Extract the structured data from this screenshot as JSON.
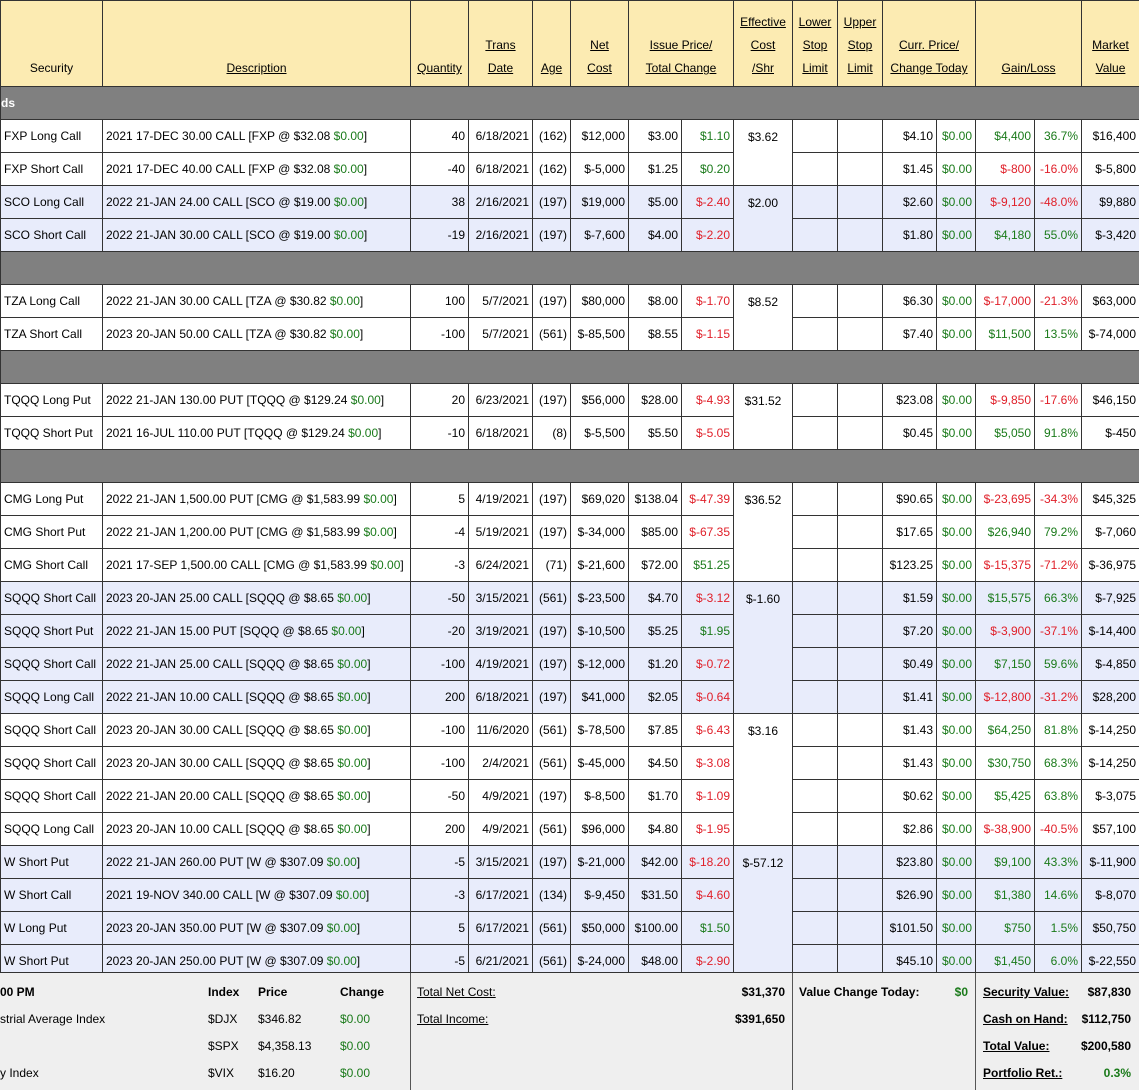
{
  "table": {
    "headers": [
      [
        "Security"
      ],
      [
        "Description"
      ],
      [
        "Quantity"
      ],
      [
        "Trans",
        "Date"
      ],
      [
        "Age"
      ],
      [
        "Net",
        "Cost"
      ],
      [
        "Issue Price/",
        "Total Change"
      ],
      [
        "Effective",
        "Cost",
        "/Shr"
      ],
      [
        "Lower",
        "Stop",
        "Limit"
      ],
      [
        "Upper",
        "Stop",
        "Limit"
      ],
      [
        "Curr. Price/",
        "Change Today"
      ],
      [
        "Gain/Loss"
      ],
      [
        "Market",
        "Value"
      ]
    ],
    "groups": [
      {
        "label": "ds",
        "blocks": [
          {
            "effective_cost": "$3.62",
            "shaded": false,
            "rows": [
              [
                "FXP Long Call",
                "2021 17-DEC 30.00 CALL [FXP @ $32.08 ",
                "$0.00",
                "]",
                "40",
                "6/18/2021",
                "(162)",
                "$12,000",
                "$3.00",
                "$1.10",
                "$4.10",
                "$0.00",
                "$4,400",
                "36.7%",
                "$16,400"
              ],
              [
                "FXP Short Call",
                "2021 17-DEC 40.00 CALL [FXP @ $32.08 ",
                "$0.00",
                "]",
                "-40",
                "6/18/2021",
                "(162)",
                "$-5,000",
                "$1.25",
                "$0.20",
                "$1.45",
                "$0.00",
                "$-800",
                "-16.0%",
                "$-5,800"
              ]
            ]
          },
          {
            "effective_cost": "$2.00",
            "shaded": true,
            "rows": [
              [
                "SCO Long Call",
                "2022 21-JAN 24.00 CALL [SCO @ $19.00 ",
                "$0.00",
                "]",
                "38",
                "2/16/2021",
                "(197)",
                "$19,000",
                "$5.00",
                "$-2.40",
                "$2.60",
                "$0.00",
                "$-9,120",
                "-48.0%",
                "$9,880"
              ],
              [
                "SCO Short Call",
                "2022 21-JAN 30.00 CALL [SCO @ $19.00 ",
                "$0.00",
                "]",
                "-19",
                "2/16/2021",
                "(197)",
                "$-7,600",
                "$4.00",
                "$-2.20",
                "$1.80",
                "$0.00",
                "$4,180",
                "55.0%",
                "$-3,420"
              ]
            ]
          }
        ]
      },
      {
        "blocks": [
          {
            "effective_cost": "$8.52",
            "shaded": false,
            "rows": [
              [
                "TZA Long Call",
                "2022 21-JAN 30.00 CALL [TZA @ $30.82 ",
                "$0.00",
                "]",
                "100",
                "5/7/2021",
                "(197)",
                "$80,000",
                "$8.00",
                "$-1.70",
                "$6.30",
                "$0.00",
                "$-17,000",
                "-21.3%",
                "$63,000"
              ],
              [
                "TZA Short Call",
                "2023 20-JAN 50.00 CALL [TZA @ $30.82 ",
                "$0.00",
                "]",
                "-100",
                "5/7/2021",
                "(561)",
                "$-85,500",
                "$8.55",
                "$-1.15",
                "$7.40",
                "$0.00",
                "$11,500",
                "13.5%",
                "$-74,000"
              ]
            ]
          }
        ]
      },
      {
        "blocks": [
          {
            "effective_cost": "$31.52",
            "shaded": false,
            "rows": [
              [
                "TQQQ Long Put",
                "2022 21-JAN 130.00 PUT [TQQQ @ $129.24 ",
                "$0.00",
                "]",
                "20",
                "6/23/2021",
                "(197)",
                "$56,000",
                "$28.00",
                "$-4.93",
                "$23.08",
                "$0.00",
                "$-9,850",
                "-17.6%",
                "$46,150"
              ],
              [
                "TQQQ Short Put",
                "2021 16-JUL 110.00 PUT [TQQQ @ $129.24 ",
                "$0.00",
                "]",
                "-10",
                "6/18/2021",
                "(8)",
                "$-5,500",
                "$5.50",
                "$-5.05",
                "$0.45",
                "$0.00",
                "$5,050",
                "91.8%",
                "$-450"
              ]
            ]
          }
        ]
      },
      {
        "blocks": [
          {
            "effective_cost": "$36.52",
            "shaded": false,
            "rows": [
              [
                "CMG Long Put",
                "2022 21-JAN 1,500.00 PUT [CMG @ $1,583.99 ",
                "$0.00",
                "]",
                "5",
                "4/19/2021",
                "(197)",
                "$69,020",
                "$138.04",
                "$-47.39",
                "$90.65",
                "$0.00",
                "$-23,695",
                "-34.3%",
                "$45,325"
              ],
              [
                "CMG Short Put",
                "2022 21-JAN 1,200.00 PUT [CMG @ $1,583.99 ",
                "$0.00",
                "]",
                "-4",
                "5/19/2021",
                "(197)",
                "$-34,000",
                "$85.00",
                "$-67.35",
                "$17.65",
                "$0.00",
                "$26,940",
                "79.2%",
                "$-7,060"
              ],
              [
                "CMG Short Call",
                "2021 17-SEP 1,500.00 CALL [CMG @ $1,583.99 ",
                "$0.00",
                "]",
                "-3",
                "6/24/2021",
                "(71)",
                "$-21,600",
                "$72.00",
                "$51.25",
                "$123.25",
                "$0.00",
                "$-15,375",
                "-71.2%",
                "$-36,975"
              ]
            ]
          },
          {
            "effective_cost": "$-1.60",
            "shaded": true,
            "rows": [
              [
                "SQQQ Short Call",
                "2023 20-JAN 25.00 CALL [SQQQ @ $8.65 ",
                "$0.00",
                "]",
                "-50",
                "3/15/2021",
                "(561)",
                "$-23,500",
                "$4.70",
                "$-3.12",
                "$1.59",
                "$0.00",
                "$15,575",
                "66.3%",
                "$-7,925"
              ],
              [
                "SQQQ Short Put",
                "2022 21-JAN 15.00 PUT [SQQQ @ $8.65 ",
                "$0.00",
                "]",
                "-20",
                "3/19/2021",
                "(197)",
                "$-10,500",
                "$5.25",
                "$1.95",
                "$7.20",
                "$0.00",
                "$-3,900",
                "-37.1%",
                "$-14,400"
              ],
              [
                "SQQQ Short Call",
                "2022 21-JAN 25.00 CALL [SQQQ @ $8.65 ",
                "$0.00",
                "]",
                "-100",
                "4/19/2021",
                "(197)",
                "$-12,000",
                "$1.20",
                "$-0.72",
                "$0.49",
                "$0.00",
                "$7,150",
                "59.6%",
                "$-4,850"
              ],
              [
                "SQQQ Long Call",
                "2022 21-JAN 10.00 CALL [SQQQ @ $8.65 ",
                "$0.00",
                "]",
                "200",
                "6/18/2021",
                "(197)",
                "$41,000",
                "$2.05",
                "$-0.64",
                "$1.41",
                "$0.00",
                "$-12,800",
                "-31.2%",
                "$28,200"
              ]
            ]
          },
          {
            "effective_cost": "$3.16",
            "shaded": false,
            "rows": [
              [
                "SQQQ Short Call",
                "2023 20-JAN 30.00 CALL [SQQQ @ $8.65 ",
                "$0.00",
                "]",
                "-100",
                "11/6/2020",
                "(561)",
                "$-78,500",
                "$7.85",
                "$-6.43",
                "$1.43",
                "$0.00",
                "$64,250",
                "81.8%",
                "$-14,250"
              ],
              [
                "SQQQ Short Call",
                "2023 20-JAN 30.00 CALL [SQQQ @ $8.65 ",
                "$0.00",
                "]",
                "-100",
                "2/4/2021",
                "(561)",
                "$-45,000",
                "$4.50",
                "$-3.08",
                "$1.43",
                "$0.00",
                "$30,750",
                "68.3%",
                "$-14,250"
              ],
              [
                "SQQQ Short Call",
                "2022 21-JAN 20.00 CALL [SQQQ @ $8.65 ",
                "$0.00",
                "]",
                "-50",
                "4/9/2021",
                "(197)",
                "$-8,500",
                "$1.70",
                "$-1.09",
                "$0.62",
                "$0.00",
                "$5,425",
                "63.8%",
                "$-3,075"
              ],
              [
                "SQQQ Long Call",
                "2023 20-JAN 10.00 CALL [SQQQ @ $8.65 ",
                "$0.00",
                "]",
                "200",
                "4/9/2021",
                "(561)",
                "$96,000",
                "$4.80",
                "$-1.95",
                "$2.86",
                "$0.00",
                "$-38,900",
                "-40.5%",
                "$57,100"
              ]
            ]
          },
          {
            "effective_cost": "$-57.12",
            "shaded": true,
            "rows": [
              [
                "W Short Put",
                "2022 21-JAN 260.00 PUT [W @ $307.09 ",
                "$0.00",
                "]",
                "-5",
                "3/15/2021",
                "(197)",
                "$-21,000",
                "$42.00",
                "$-18.20",
                "$23.80",
                "$0.00",
                "$9,100",
                "43.3%",
                "$-11,900"
              ],
              [
                "W Short Call",
                "2021 19-NOV 340.00 CALL [W @ $307.09 ",
                "$0.00",
                "]",
                "-3",
                "6/17/2021",
                "(134)",
                "$-9,450",
                "$31.50",
                "$-4.60",
                "$26.90",
                "$0.00",
                "$1,380",
                "14.6%",
                "$-8,070"
              ],
              [
                "W Long Put",
                "2023 20-JAN 350.00 PUT [W @ $307.09 ",
                "$0.00",
                "]",
                "5",
                "6/17/2021",
                "(561)",
                "$50,000",
                "$100.00",
                "$1.50",
                "$101.50",
                "$0.00",
                "$750",
                "1.5%",
                "$50,750"
              ],
              [
                "W Short Put",
                "2023 20-JAN 250.00 PUT [W @ $307.09 ",
                "$0.00",
                "]",
                "-5",
                "6/21/2021",
                "(561)",
                "$-24,000",
                "$48.00",
                "$-2.90",
                "$45.10",
                "$0.00",
                "$1,450",
                "6.0%",
                "$-22,550"
              ]
            ]
          }
        ]
      }
    ]
  },
  "footer": {
    "time": "00 PM",
    "index_headers": [
      "Index",
      "Price",
      "Change"
    ],
    "indexes": [
      [
        "strial Average Index",
        "$DJX",
        "$346.82",
        "$0.00"
      ],
      [
        null,
        "$SPX",
        "$4,358.13",
        "$0.00"
      ],
      [
        "y Index",
        "$VIX",
        "$16.20",
        "$0.00"
      ]
    ],
    "totals": [
      [
        "Total Net Cost:",
        "$31,370"
      ],
      [
        "Total Income:",
        "$391,650"
      ]
    ],
    "value_change": [
      "Value Change Today:",
      "$0"
    ],
    "summary": [
      [
        "Security Value:",
        "$87,830"
      ],
      [
        "Cash on Hand:",
        "$112,750"
      ],
      [
        "Total Value:",
        "$200,580"
      ],
      [
        "Portfolio Ret.:",
        "0.3%"
      ]
    ]
  }
}
